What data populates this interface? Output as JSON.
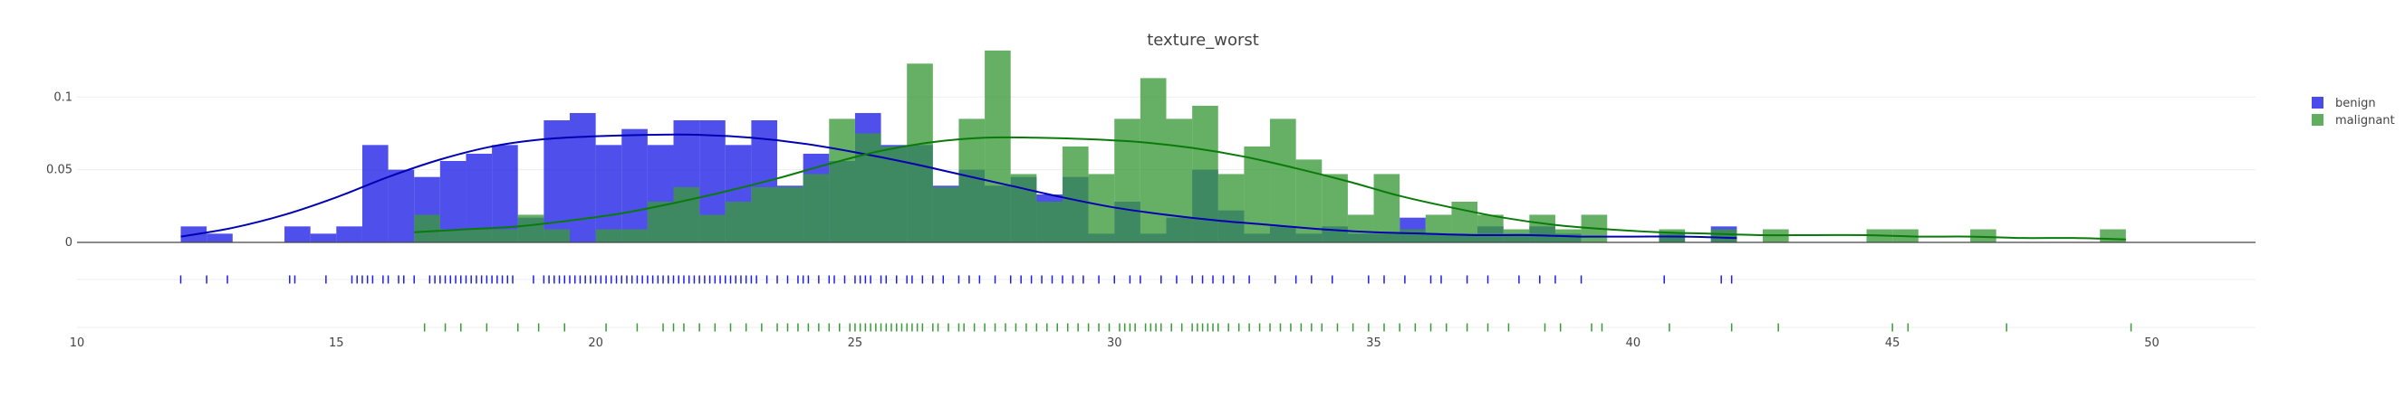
{
  "chart_data": {
    "type": "bar",
    "title": "texture_worst",
    "xlabel": "",
    "ylabel": "",
    "xlim": [
      10,
      52
    ],
    "ylim": [
      0,
      0.14
    ],
    "x_ticks": [
      10,
      15,
      20,
      25,
      30,
      35,
      40,
      45,
      50
    ],
    "x_tick_labels": [
      "10",
      "15",
      "20",
      "25",
      "30",
      "35",
      "40",
      "45",
      "50"
    ],
    "y_ticks": [
      0,
      0.05,
      0.1
    ],
    "y_tick_labels": [
      "0",
      "0.05",
      "0.1"
    ],
    "bin_width": 0.5,
    "grid": true,
    "legend": {
      "position": "top-right"
    },
    "series": [
      {
        "name": "benign",
        "color": "#1e1ee6",
        "kde_color": "#0000b4",
        "bins": [
          {
            "x": 12.0,
            "y": 0.011
          },
          {
            "x": 12.5,
            "y": 0.006
          },
          {
            "x": 14.0,
            "y": 0.011
          },
          {
            "x": 14.5,
            "y": 0.006
          },
          {
            "x": 15.0,
            "y": 0.011
          },
          {
            "x": 15.5,
            "y": 0.067
          },
          {
            "x": 16.0,
            "y": 0.05
          },
          {
            "x": 16.5,
            "y": 0.045
          },
          {
            "x": 17.0,
            "y": 0.056
          },
          {
            "x": 17.5,
            "y": 0.061
          },
          {
            "x": 18.0,
            "y": 0.067
          },
          {
            "x": 18.5,
            "y": 0.017
          },
          {
            "x": 19.0,
            "y": 0.084
          },
          {
            "x": 19.5,
            "y": 0.089
          },
          {
            "x": 20.0,
            "y": 0.067
          },
          {
            "x": 20.5,
            "y": 0.078
          },
          {
            "x": 21.0,
            "y": 0.067
          },
          {
            "x": 21.5,
            "y": 0.084
          },
          {
            "x": 22.0,
            "y": 0.084
          },
          {
            "x": 22.5,
            "y": 0.067
          },
          {
            "x": 23.0,
            "y": 0.084
          },
          {
            "x": 23.5,
            "y": 0.039
          },
          {
            "x": 24.0,
            "y": 0.061
          },
          {
            "x": 24.5,
            "y": 0.056
          },
          {
            "x": 25.0,
            "y": 0.089
          },
          {
            "x": 25.5,
            "y": 0.067
          },
          {
            "x": 26.0,
            "y": 0.067
          },
          {
            "x": 26.5,
            "y": 0.039
          },
          {
            "x": 27.0,
            "y": 0.05
          },
          {
            "x": 27.5,
            "y": 0.039
          },
          {
            "x": 28.0,
            "y": 0.045
          },
          {
            "x": 28.5,
            "y": 0.033
          },
          {
            "x": 29.0,
            "y": 0.045
          },
          {
            "x": 29.5,
            "y": 0.006
          },
          {
            "x": 30.0,
            "y": 0.028
          },
          {
            "x": 30.5,
            "y": 0.006
          },
          {
            "x": 31.0,
            "y": 0.017
          },
          {
            "x": 31.5,
            "y": 0.05
          },
          {
            "x": 32.0,
            "y": 0.022
          },
          {
            "x": 32.5,
            "y": 0.006
          },
          {
            "x": 33.0,
            "y": 0.011
          },
          {
            "x": 33.5,
            "y": 0.006
          },
          {
            "x": 34.0,
            "y": 0.011
          },
          {
            "x": 34.5,
            "y": 0.006
          },
          {
            "x": 35.0,
            "y": 0.006
          },
          {
            "x": 35.5,
            "y": 0.017
          },
          {
            "x": 36.0,
            "y": 0.006
          },
          {
            "x": 36.5,
            "y": 0.006
          },
          {
            "x": 37.0,
            "y": 0.011
          },
          {
            "x": 37.5,
            "y": 0.006
          },
          {
            "x": 38.0,
            "y": 0.011
          },
          {
            "x": 38.5,
            "y": 0.006
          },
          {
            "x": 40.5,
            "y": 0.006
          },
          {
            "x": 41.5,
            "y": 0.011
          }
        ],
        "kde": [
          [
            12.0,
            0.004
          ],
          [
            13.0,
            0.01
          ],
          [
            14.0,
            0.019
          ],
          [
            15.0,
            0.031
          ],
          [
            16.0,
            0.045
          ],
          [
            17.0,
            0.057
          ],
          [
            18.0,
            0.066
          ],
          [
            19.0,
            0.071
          ],
          [
            20.0,
            0.073
          ],
          [
            21.0,
            0.074
          ],
          [
            22.0,
            0.074
          ],
          [
            23.0,
            0.072
          ],
          [
            24.0,
            0.068
          ],
          [
            25.0,
            0.062
          ],
          [
            26.0,
            0.055
          ],
          [
            27.0,
            0.047
          ],
          [
            28.0,
            0.039
          ],
          [
            29.0,
            0.031
          ],
          [
            30.0,
            0.024
          ],
          [
            31.0,
            0.019
          ],
          [
            32.0,
            0.015
          ],
          [
            33.0,
            0.012
          ],
          [
            34.0,
            0.009
          ],
          [
            35.0,
            0.007
          ],
          [
            36.0,
            0.006
          ],
          [
            37.0,
            0.005
          ],
          [
            38.0,
            0.005
          ],
          [
            39.0,
            0.004
          ],
          [
            40.0,
            0.004
          ],
          [
            41.0,
            0.004
          ],
          [
            42.0,
            0.003
          ]
        ],
        "rug": [
          12.0,
          12.5,
          12.9,
          14.1,
          14.2,
          14.8,
          15.3,
          15.4,
          15.5,
          15.6,
          15.7,
          15.9,
          16.0,
          16.2,
          16.3,
          16.5,
          16.8,
          16.9,
          17.0,
          17.1,
          17.2,
          17.3,
          17.4,
          17.5,
          17.6,
          17.7,
          17.8,
          17.9,
          18.0,
          18.1,
          18.2,
          18.3,
          18.4,
          18.8,
          19.0,
          19.1,
          19.2,
          19.3,
          19.4,
          19.5,
          19.6,
          19.7,
          19.8,
          19.9,
          20.0,
          20.1,
          20.2,
          20.3,
          20.4,
          20.5,
          20.6,
          20.7,
          20.8,
          20.9,
          21.0,
          21.1,
          21.2,
          21.3,
          21.4,
          21.5,
          21.6,
          21.7,
          21.8,
          21.9,
          22.0,
          22.1,
          22.2,
          22.3,
          22.4,
          22.5,
          22.6,
          22.7,
          22.8,
          22.9,
          23.0,
          23.1,
          23.3,
          23.5,
          23.7,
          23.9,
          24.0,
          24.1,
          24.3,
          24.5,
          24.6,
          24.8,
          25.0,
          25.1,
          25.2,
          25.3,
          25.5,
          25.6,
          25.8,
          26.0,
          26.1,
          26.3,
          26.5,
          26.7,
          27.0,
          27.2,
          27.4,
          27.7,
          28.0,
          28.2,
          28.4,
          28.6,
          28.8,
          29.0,
          29.2,
          29.4,
          29.7,
          30.0,
          30.3,
          30.5,
          30.9,
          31.2,
          31.5,
          31.7,
          31.9,
          32.1,
          32.3,
          32.6,
          33.1,
          33.5,
          33.8,
          34.2,
          34.9,
          35.2,
          35.6,
          36.1,
          36.3,
          36.8,
          37.2,
          37.8,
          38.2,
          38.5,
          39.0,
          40.6,
          41.7,
          41.9
        ]
      },
      {
        "name": "malignant",
        "color": "#3a9a3a",
        "kde_color": "#0a7a0a",
        "bins": [
          {
            "x": 16.5,
            "y": 0.019
          },
          {
            "x": 17.0,
            "y": 0.009
          },
          {
            "x": 17.5,
            "y": 0.009
          },
          {
            "x": 18.0,
            "y": 0.009
          },
          {
            "x": 18.5,
            "y": 0.019
          },
          {
            "x": 19.0,
            "y": 0.009
          },
          {
            "x": 20.0,
            "y": 0.009
          },
          {
            "x": 20.5,
            "y": 0.009
          },
          {
            "x": 21.0,
            "y": 0.028
          },
          {
            "x": 21.5,
            "y": 0.038
          },
          {
            "x": 22.0,
            "y": 0.019
          },
          {
            "x": 22.5,
            "y": 0.028
          },
          {
            "x": 23.0,
            "y": 0.038
          },
          {
            "x": 23.5,
            "y": 0.038
          },
          {
            "x": 24.0,
            "y": 0.047
          },
          {
            "x": 24.5,
            "y": 0.085
          },
          {
            "x": 25.0,
            "y": 0.075
          },
          {
            "x": 25.5,
            "y": 0.066
          },
          {
            "x": 26.0,
            "y": 0.123
          },
          {
            "x": 26.5,
            "y": 0.038
          },
          {
            "x": 27.0,
            "y": 0.085
          },
          {
            "x": 27.5,
            "y": 0.132
          },
          {
            "x": 28.0,
            "y": 0.047
          },
          {
            "x": 28.5,
            "y": 0.028
          },
          {
            "x": 29.0,
            "y": 0.066
          },
          {
            "x": 29.5,
            "y": 0.047
          },
          {
            "x": 30.0,
            "y": 0.085
          },
          {
            "x": 30.5,
            "y": 0.113
          },
          {
            "x": 31.0,
            "y": 0.085
          },
          {
            "x": 31.5,
            "y": 0.094
          },
          {
            "x": 32.0,
            "y": 0.047
          },
          {
            "x": 32.5,
            "y": 0.066
          },
          {
            "x": 33.0,
            "y": 0.085
          },
          {
            "x": 33.5,
            "y": 0.057
          },
          {
            "x": 34.0,
            "y": 0.047
          },
          {
            "x": 34.5,
            "y": 0.019
          },
          {
            "x": 35.0,
            "y": 0.047
          },
          {
            "x": 35.5,
            "y": 0.009
          },
          {
            "x": 36.0,
            "y": 0.019
          },
          {
            "x": 36.5,
            "y": 0.028
          },
          {
            "x": 37.0,
            "y": 0.019
          },
          {
            "x": 37.5,
            "y": 0.009
          },
          {
            "x": 38.0,
            "y": 0.019
          },
          {
            "x": 38.5,
            "y": 0.009
          },
          {
            "x": 39.0,
            "y": 0.019
          },
          {
            "x": 40.5,
            "y": 0.009
          },
          {
            "x": 41.5,
            "y": 0.009
          },
          {
            "x": 42.5,
            "y": 0.009
          },
          {
            "x": 44.5,
            "y": 0.009
          },
          {
            "x": 45.0,
            "y": 0.009
          },
          {
            "x": 46.5,
            "y": 0.009
          },
          {
            "x": 49.0,
            "y": 0.009
          }
        ],
        "kde": [
          [
            16.5,
            0.007
          ],
          [
            17.5,
            0.009
          ],
          [
            18.5,
            0.011
          ],
          [
            19.5,
            0.015
          ],
          [
            20.5,
            0.02
          ],
          [
            21.5,
            0.027
          ],
          [
            22.5,
            0.035
          ],
          [
            23.5,
            0.044
          ],
          [
            24.5,
            0.054
          ],
          [
            25.5,
            0.063
          ],
          [
            26.5,
            0.069
          ],
          [
            27.5,
            0.072
          ],
          [
            28.5,
            0.072
          ],
          [
            29.5,
            0.071
          ],
          [
            30.5,
            0.069
          ],
          [
            31.5,
            0.065
          ],
          [
            32.5,
            0.059
          ],
          [
            33.5,
            0.051
          ],
          [
            34.5,
            0.042
          ],
          [
            35.5,
            0.032
          ],
          [
            36.5,
            0.024
          ],
          [
            37.5,
            0.017
          ],
          [
            38.5,
            0.012
          ],
          [
            39.5,
            0.009
          ],
          [
            40.5,
            0.007
          ],
          [
            41.5,
            0.006
          ],
          [
            42.5,
            0.005
          ],
          [
            43.5,
            0.005
          ],
          [
            44.5,
            0.005
          ],
          [
            45.5,
            0.004
          ],
          [
            46.5,
            0.004
          ],
          [
            47.5,
            0.003
          ],
          [
            48.5,
            0.003
          ],
          [
            49.5,
            0.002
          ]
        ],
        "rug": [
          16.7,
          17.1,
          17.4,
          17.9,
          18.5,
          18.9,
          19.4,
          20.2,
          20.8,
          21.3,
          21.5,
          21.7,
          22.0,
          22.3,
          22.6,
          22.9,
          23.2,
          23.5,
          23.7,
          23.9,
          24.1,
          24.3,
          24.5,
          24.7,
          24.9,
          25.0,
          25.1,
          25.2,
          25.3,
          25.4,
          25.5,
          25.6,
          25.7,
          25.8,
          25.9,
          26.0,
          26.1,
          26.2,
          26.3,
          26.5,
          26.6,
          26.8,
          27.0,
          27.1,
          27.3,
          27.5,
          27.7,
          27.9,
          28.1,
          28.3,
          28.5,
          28.7,
          28.9,
          29.1,
          29.3,
          29.5,
          29.7,
          29.9,
          30.1,
          30.2,
          30.3,
          30.4,
          30.6,
          30.7,
          30.8,
          30.9,
          31.1,
          31.3,
          31.5,
          31.6,
          31.7,
          31.8,
          31.9,
          32.0,
          32.2,
          32.4,
          32.6,
          32.8,
          33.0,
          33.2,
          33.4,
          33.6,
          33.8,
          34.0,
          34.3,
          34.6,
          34.9,
          35.2,
          35.5,
          35.8,
          36.1,
          36.4,
          36.8,
          37.2,
          37.6,
          38.3,
          38.6,
          39.2,
          39.4,
          40.7,
          41.9,
          42.8,
          45.0,
          45.3,
          47.2,
          49.6
        ]
      }
    ]
  }
}
